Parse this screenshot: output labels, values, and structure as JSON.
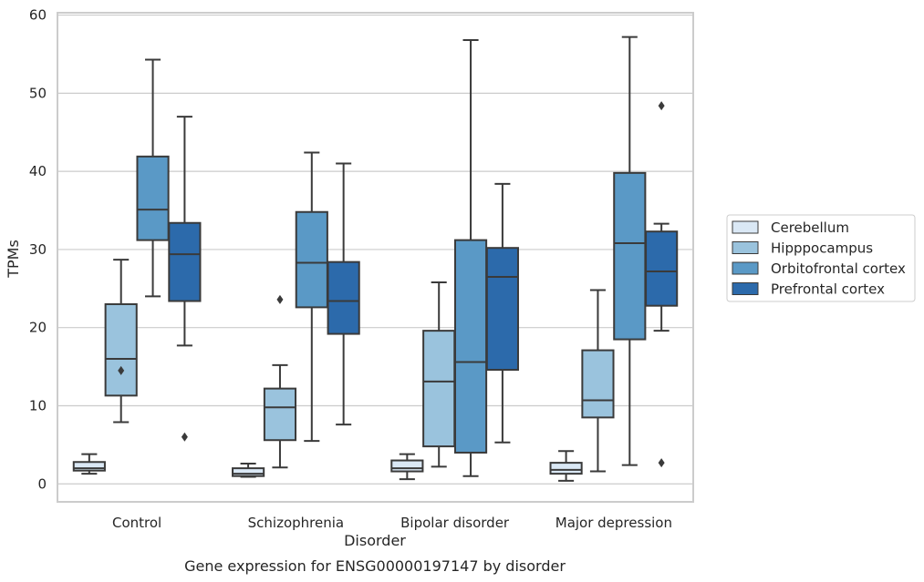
{
  "chart_data": {
    "type": "box",
    "caption": "Gene expression for ENSG00000197147 by disorder",
    "xlabel": "Disorder",
    "ylabel": "TPMs",
    "ylim": [
      -2.3,
      60.3
    ],
    "yticks": [
      0,
      10,
      20,
      30,
      40,
      50,
      60
    ],
    "grid": true,
    "legend_position": "right",
    "categories": [
      "Control",
      "Schizophrenia",
      "Bipolar disorder",
      "Major depression"
    ],
    "series": [
      {
        "name": "Cerebellum",
        "color": "#dae8f5",
        "boxes": [
          {
            "whislo": 1.3,
            "q1": 1.7,
            "med": 2.0,
            "q3": 2.8,
            "whishi": 3.8,
            "fliers": []
          },
          {
            "whislo": 0.9,
            "q1": 1.0,
            "med": 1.3,
            "q3": 2.0,
            "whishi": 2.6,
            "fliers": []
          },
          {
            "whislo": 0.6,
            "q1": 1.6,
            "med": 2.0,
            "q3": 3.0,
            "whishi": 3.8,
            "fliers": []
          },
          {
            "whislo": 0.4,
            "q1": 1.3,
            "med": 1.8,
            "q3": 2.7,
            "whishi": 4.2,
            "fliers": []
          }
        ]
      },
      {
        "name": "Hipppocampus",
        "color": "#9ac3dd",
        "boxes": [
          {
            "whislo": 7.9,
            "q1": 11.3,
            "med": 16.0,
            "q3": 23.0,
            "whishi": 28.7,
            "fliers": [
              14.5
            ]
          },
          {
            "whislo": 2.1,
            "q1": 5.6,
            "med": 9.8,
            "q3": 12.2,
            "whishi": 15.2,
            "fliers": [
              23.6
            ]
          },
          {
            "whislo": 2.2,
            "q1": 4.8,
            "med": 13.1,
            "q3": 19.6,
            "whishi": 25.8,
            "fliers": []
          },
          {
            "whislo": 1.6,
            "q1": 8.5,
            "med": 10.7,
            "q3": 17.1,
            "whishi": 24.8,
            "fliers": []
          }
        ]
      },
      {
        "name": "Orbitofrontal cortex",
        "color": "#5a99c6",
        "boxes": [
          {
            "whislo": 24.0,
            "q1": 31.2,
            "med": 35.1,
            "q3": 41.9,
            "whishi": 54.3,
            "fliers": []
          },
          {
            "whislo": 5.5,
            "q1": 22.6,
            "med": 28.3,
            "q3": 34.8,
            "whishi": 42.4,
            "fliers": []
          },
          {
            "whislo": 1.0,
            "q1": 4.0,
            "med": 15.6,
            "q3": 31.2,
            "whishi": 56.8,
            "fliers": []
          },
          {
            "whislo": 2.4,
            "q1": 18.5,
            "med": 30.8,
            "q3": 39.8,
            "whishi": 57.2,
            "fliers": []
          }
        ]
      },
      {
        "name": "Prefrontal cortex",
        "color": "#2c6aab",
        "boxes": [
          {
            "whislo": 17.7,
            "q1": 23.4,
            "med": 29.4,
            "q3": 33.4,
            "whishi": 47.0,
            "fliers": [
              6.0
            ]
          },
          {
            "whislo": 7.6,
            "q1": 19.2,
            "med": 23.4,
            "q3": 28.4,
            "whishi": 41.0,
            "fliers": []
          },
          {
            "whislo": 5.3,
            "q1": 14.6,
            "med": 26.5,
            "q3": 30.2,
            "whishi": 38.4,
            "fliers": []
          },
          {
            "whislo": 19.6,
            "q1": 22.8,
            "med": 27.2,
            "q3": 32.3,
            "whishi": 33.3,
            "fliers": [
              2.7,
              48.4
            ]
          }
        ]
      }
    ]
  }
}
